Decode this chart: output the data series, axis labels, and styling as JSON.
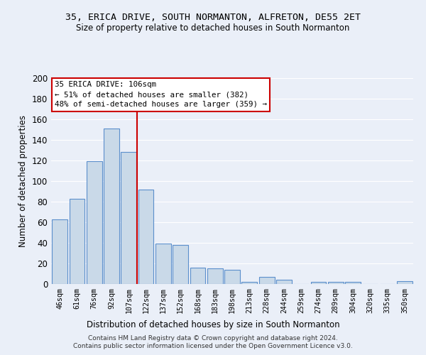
{
  "title1": "35, ERICA DRIVE, SOUTH NORMANTON, ALFRETON, DE55 2ET",
  "title2": "Size of property relative to detached houses in South Normanton",
  "xlabel": "Distribution of detached houses by size in South Normanton",
  "ylabel": "Number of detached properties",
  "categories": [
    "46sqm",
    "61sqm",
    "76sqm",
    "92sqm",
    "107sqm",
    "122sqm",
    "137sqm",
    "152sqm",
    "168sqm",
    "183sqm",
    "198sqm",
    "213sqm",
    "228sqm",
    "244sqm",
    "259sqm",
    "274sqm",
    "289sqm",
    "304sqm",
    "320sqm",
    "335sqm",
    "350sqm"
  ],
  "values": [
    63,
    83,
    119,
    151,
    128,
    92,
    39,
    38,
    16,
    15,
    14,
    2,
    7,
    4,
    0,
    2,
    2,
    2,
    0,
    0,
    3
  ],
  "bar_color": "#c9d9e8",
  "bar_edge_color": "#5b8fcc",
  "annotation_line_label": "35 ERICA DRIVE: 106sqm",
  "annotation_text1": "← 51% of detached houses are smaller (382)",
  "annotation_text2": "48% of semi-detached houses are larger (359) →",
  "annotation_box_color": "#ffffff",
  "annotation_box_edge_color": "#cc0000",
  "vline_color": "#cc0000",
  "vline_x": 4.5,
  "ylim": [
    0,
    200
  ],
  "yticks": [
    0,
    20,
    40,
    60,
    80,
    100,
    120,
    140,
    160,
    180,
    200
  ],
  "footer": "Contains HM Land Registry data © Crown copyright and database right 2024.\nContains public sector information licensed under the Open Government Licence v3.0.",
  "bg_color": "#eaeff8",
  "grid_color": "#ffffff"
}
